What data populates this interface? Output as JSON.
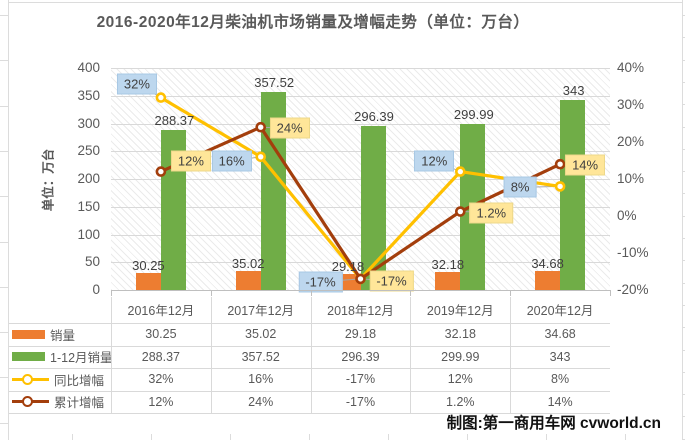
{
  "title": "2016-2020年12月柴油机市场销量及增幅走势（单位：万台）",
  "y_axis_title": "单位：万台",
  "footer_credit": "制图:第一商用车网 cvworld.cn",
  "colors": {
    "accent_orange": "#ED7D31",
    "accent_green": "#70AD47",
    "accent_gold": "#FFC000",
    "accent_brown": "#A33E0C",
    "label_box_blue": "#BDD7EE",
    "label_box_yellow": "#FFE699",
    "grid": "#D9D9D9",
    "axis_text": "#595959",
    "value_text": "#404040"
  },
  "chart_data": {
    "type": "combo-bar-line",
    "categories": [
      "2016年12月",
      "2017年12月",
      "2018年12月",
      "2019年12月",
      "2020年12月"
    ],
    "series": [
      {
        "name": "销量",
        "type": "bar",
        "axis": "left",
        "color": "#ED7D31",
        "values": [
          30.25,
          35.02,
          29.18,
          32.18,
          34.68
        ],
        "labels": [
          "30.25",
          "35.02",
          "29.18",
          "32.18",
          "34.68"
        ]
      },
      {
        "name": "1-12月销量",
        "type": "bar",
        "axis": "left",
        "color": "#70AD47",
        "values": [
          288.37,
          357.52,
          296.39,
          299.99,
          343
        ],
        "labels": [
          "288.37",
          "357.52",
          "296.39",
          "299.99",
          "343"
        ]
      },
      {
        "name": "同比增幅",
        "type": "line",
        "axis": "right",
        "color": "#FFC000",
        "label_bg": "#BDD7EE",
        "label_border": "#A8C8E4",
        "values": [
          32,
          16,
          -17,
          12,
          8
        ],
        "labels": [
          "32%",
          "16%",
          "-17%",
          "12%",
          "8%"
        ],
        "label_offsets": [
          [
            -24,
            -14
          ],
          [
            -29,
            4
          ],
          [
            -40,
            3
          ],
          [
            -26,
            -11
          ],
          [
            -40,
            1
          ]
        ]
      },
      {
        "name": "累计增幅",
        "type": "line",
        "axis": "right",
        "color": "#A33E0C",
        "label_bg": "#FFE699",
        "label_border": "#EDD88A",
        "values": [
          12,
          24,
          -17,
          1.2,
          14
        ],
        "labels": [
          "12%",
          "24%",
          "-17%",
          "1.2%",
          "14%"
        ],
        "label_offsets": [
          [
            30,
            -11
          ],
          [
            29,
            1
          ],
          [
            31,
            2
          ],
          [
            31,
            1
          ],
          [
            25,
            1
          ]
        ]
      }
    ],
    "left_axis": {
      "min": 0,
      "max": 400,
      "step": 50,
      "labels": [
        "400",
        "350",
        "300",
        "250",
        "200",
        "150",
        "100",
        "50",
        "0"
      ]
    },
    "right_axis": {
      "min": -20,
      "max": 40,
      "step": 10,
      "labels": [
        "40%",
        "30%",
        "20%",
        "10%",
        "0%",
        "-10%",
        "-20%"
      ]
    },
    "grid": true,
    "legend_position": "data-table-bottom"
  }
}
